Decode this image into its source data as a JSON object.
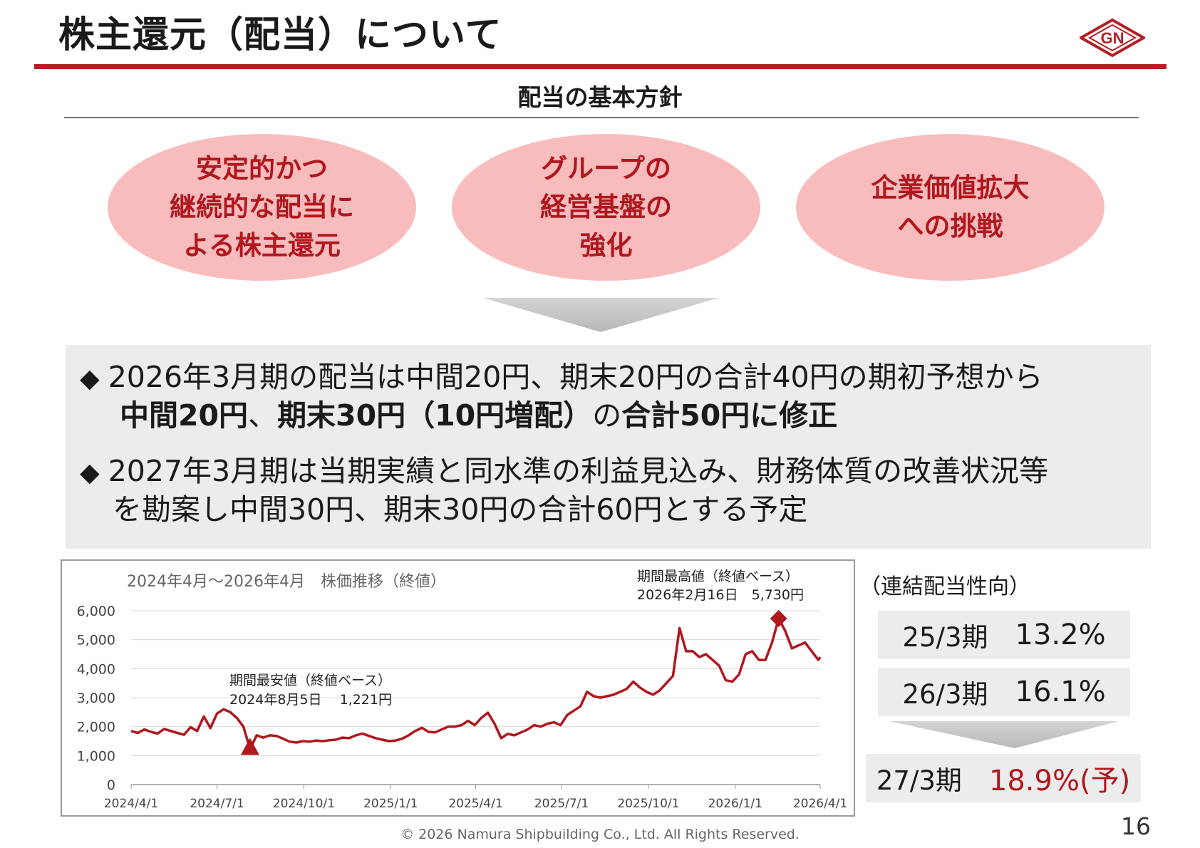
{
  "header": {
    "title": "株主還元（配当）について",
    "logo_text": "GN",
    "accent_color": "#b51f24"
  },
  "policy": {
    "heading": "配当の基本方針",
    "pillars": [
      {
        "text": "安定的かつ\n継続的な配当に\nよる株主還元"
      },
      {
        "text": "グループの\n経営基盤の\n強化"
      },
      {
        "text": "企業価値拡大\nへの挑戦"
      }
    ],
    "pillar_color": "#f9bcbc",
    "pillar_text_color": "#b0171e"
  },
  "bullets": [
    {
      "line1": "2026年3月期の配当は中間20円、期末20円の合計40円の期初予想から",
      "line2_parts": [
        "中間20円",
        "、",
        "期末30円（10円増配）",
        "の",
        "合計50円に修正"
      ]
    },
    {
      "line1": "2027年3月期は当期実績と同水準の利益見込み、財務体質の改善状況等",
      "line2": "を勘案し中間30円、期末30円の合計60円とする予定"
    }
  ],
  "bullet_marker": "◆",
  "chart_data": {
    "type": "line",
    "title": "2024年4月～2026年4月　株価推移（終値）",
    "xlabel": "",
    "ylabel": "",
    "ylim": [
      0,
      6000
    ],
    "yticks": [
      0,
      1000,
      2000,
      3000,
      4000,
      5000,
      6000
    ],
    "ytick_labels": [
      "0",
      "1,000",
      "2,000",
      "3,000",
      "4,000",
      "5,000",
      "6,000"
    ],
    "xtick_labels": [
      "2024/4/1",
      "2024/7/1",
      "2024/10/1",
      "2025/1/1",
      "2025/4/1",
      "2025/7/1",
      "2025/10/1",
      "2026/1/1",
      "2026/4/1"
    ],
    "xtick_dates": [
      "2024-04-01",
      "2024-07-01",
      "2024-10-01",
      "2025-01-01",
      "2025-04-01",
      "2025-07-01",
      "2025-10-01",
      "2026-01-01",
      "2026-04-01"
    ],
    "grid": true,
    "line_color": "#b0171e",
    "series": [
      {
        "points": [
          [
            "2024-04-01",
            1850
          ],
          [
            "2024-04-08",
            1780
          ],
          [
            "2024-04-15",
            1900
          ],
          [
            "2024-04-22",
            1820
          ],
          [
            "2024-04-29",
            1760
          ],
          [
            "2024-05-06",
            1920
          ],
          [
            "2024-05-13",
            1850
          ],
          [
            "2024-05-20",
            1780
          ],
          [
            "2024-05-27",
            1720
          ],
          [
            "2024-06-03",
            1980
          ],
          [
            "2024-06-10",
            1850
          ],
          [
            "2024-06-17",
            2350
          ],
          [
            "2024-06-24",
            1950
          ],
          [
            "2024-07-01",
            2450
          ],
          [
            "2024-07-08",
            2600
          ],
          [
            "2024-07-15",
            2500
          ],
          [
            "2024-07-22",
            2300
          ],
          [
            "2024-07-29",
            2000
          ],
          [
            "2024-08-05",
            1221
          ],
          [
            "2024-08-12",
            1700
          ],
          [
            "2024-08-19",
            1620
          ],
          [
            "2024-08-26",
            1700
          ],
          [
            "2024-09-02",
            1680
          ],
          [
            "2024-09-09",
            1580
          ],
          [
            "2024-09-16",
            1480
          ],
          [
            "2024-09-23",
            1450
          ],
          [
            "2024-09-30",
            1500
          ],
          [
            "2024-10-07",
            1480
          ],
          [
            "2024-10-14",
            1520
          ],
          [
            "2024-10-21",
            1500
          ],
          [
            "2024-10-28",
            1530
          ],
          [
            "2024-11-04",
            1550
          ],
          [
            "2024-11-11",
            1620
          ],
          [
            "2024-11-18",
            1600
          ],
          [
            "2024-11-25",
            1700
          ],
          [
            "2024-12-02",
            1760
          ],
          [
            "2024-12-09",
            1680
          ],
          [
            "2024-12-16",
            1600
          ],
          [
            "2024-12-23",
            1550
          ],
          [
            "2024-12-30",
            1500
          ],
          [
            "2025-01-06",
            1520
          ],
          [
            "2025-01-13",
            1580
          ],
          [
            "2025-01-20",
            1700
          ],
          [
            "2025-01-27",
            1850
          ],
          [
            "2025-02-03",
            1960
          ],
          [
            "2025-02-10",
            1820
          ],
          [
            "2025-02-17",
            1800
          ],
          [
            "2025-02-24",
            1900
          ],
          [
            "2025-03-03",
            2000
          ],
          [
            "2025-03-10",
            2000
          ],
          [
            "2025-03-17",
            2050
          ],
          [
            "2025-03-24",
            2200
          ],
          [
            "2025-03-31",
            2050
          ],
          [
            "2025-04-07",
            2300
          ],
          [
            "2025-04-14",
            2480
          ],
          [
            "2025-04-21",
            2100
          ],
          [
            "2025-04-28",
            1600
          ],
          [
            "2025-05-05",
            1750
          ],
          [
            "2025-05-12",
            1700
          ],
          [
            "2025-05-19",
            1800
          ],
          [
            "2025-05-26",
            1900
          ],
          [
            "2025-06-02",
            2050
          ],
          [
            "2025-06-09",
            2000
          ],
          [
            "2025-06-16",
            2100
          ],
          [
            "2025-06-23",
            2150
          ],
          [
            "2025-06-30",
            2050
          ],
          [
            "2025-07-07",
            2400
          ],
          [
            "2025-07-14",
            2550
          ],
          [
            "2025-07-21",
            2700
          ],
          [
            "2025-07-28",
            3200
          ],
          [
            "2025-08-04",
            3050
          ],
          [
            "2025-08-11",
            3000
          ],
          [
            "2025-08-18",
            3050
          ],
          [
            "2025-08-25",
            3100
          ],
          [
            "2025-09-01",
            3200
          ],
          [
            "2025-09-08",
            3300
          ],
          [
            "2025-09-15",
            3550
          ],
          [
            "2025-09-22",
            3350
          ],
          [
            "2025-09-29",
            3200
          ],
          [
            "2025-10-06",
            3100
          ],
          [
            "2025-10-13",
            3250
          ],
          [
            "2025-10-20",
            3500
          ],
          [
            "2025-10-27",
            3750
          ],
          [
            "2025-11-03",
            5400
          ],
          [
            "2025-11-10",
            4600
          ],
          [
            "2025-11-17",
            4600
          ],
          [
            "2025-11-24",
            4400
          ],
          [
            "2025-12-01",
            4500
          ],
          [
            "2025-12-08",
            4300
          ],
          [
            "2025-12-15",
            4100
          ],
          [
            "2025-12-22",
            3600
          ],
          [
            "2025-12-29",
            3550
          ],
          [
            "2026-01-05",
            3800
          ],
          [
            "2026-01-12",
            4500
          ],
          [
            "2026-01-19",
            4600
          ],
          [
            "2026-01-26",
            4300
          ],
          [
            "2026-02-02",
            4300
          ],
          [
            "2026-02-09",
            4900
          ],
          [
            "2026-02-16",
            5730
          ],
          [
            "2026-02-23",
            5300
          ],
          [
            "2026-03-02",
            4700
          ],
          [
            "2026-03-09",
            4800
          ],
          [
            "2026-03-16",
            4900
          ],
          [
            "2026-03-23",
            4600
          ],
          [
            "2026-03-30",
            4300
          ],
          [
            "2026-04-01",
            4400
          ]
        ]
      }
    ],
    "annotations": [
      {
        "label_line1": "期間最高値（終値ベース）",
        "label_line2": "2026年2月16日　5,730円",
        "date": "2026-02-16",
        "value": 5730,
        "marker": "diamond"
      },
      {
        "label_line1": "期間最安値（終値ベース）",
        "label_line2": "2024年8月5日　 1,221円",
        "date": "2024-08-05",
        "value": 1221,
        "marker": "triangle"
      }
    ]
  },
  "payout": {
    "heading": "（連結配当性向）",
    "rows": [
      {
        "period": "25/3期",
        "value": "13.2%"
      },
      {
        "period": "26/3期",
        "value": "16.1%"
      },
      {
        "period": "27/3期",
        "value": "18.9%(予)"
      }
    ]
  },
  "footer": {
    "copyright": "© 2026 Namura Shipbuilding Co., Ltd. All Rights Reserved.",
    "page_number": "16"
  }
}
